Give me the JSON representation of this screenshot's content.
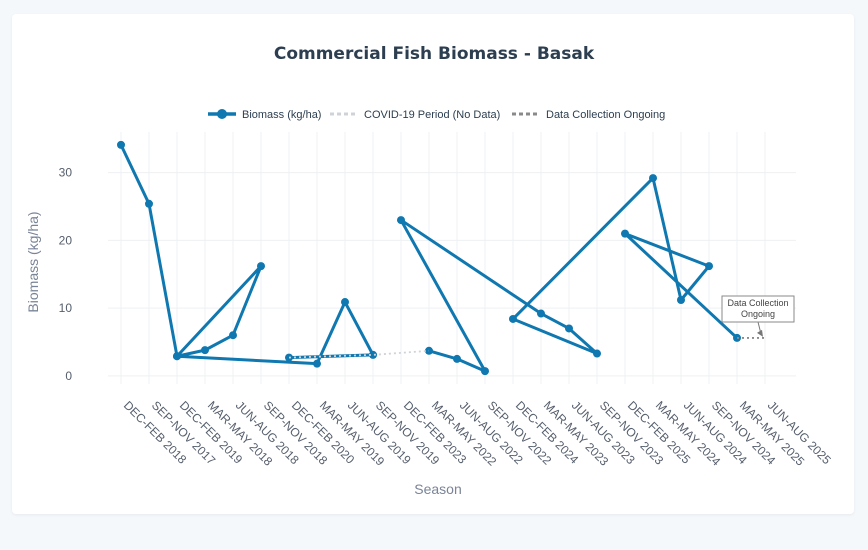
{
  "chart_data": {
    "type": "line",
    "title": "Commercial Fish Biomass - Basak",
    "xlabel": "Season",
    "ylabel": "Biomass (kg/ha)",
    "ylim": [
      -1.2,
      36
    ],
    "yticks": [
      0,
      10,
      20,
      30
    ],
    "grid": true,
    "legend_position": "top-center",
    "categories": [
      "DEC-FEB 2018",
      "SEP-NOV 2017",
      "DEC-FEB 2019",
      "MAR-MAY 2018",
      "JUN-AUG 2018",
      "SEP-NOV 2018",
      "DEC-FEB 2020",
      "MAR-MAY 2019",
      "JUN-AUG 2019",
      "SEP-NOV 2019",
      "DEC-FEB 2023",
      "MAR-MAY 2022",
      "JUN-AUG 2022",
      "SEP-NOV 2022",
      "DEC-FEB 2024",
      "MAR-MAY 2023",
      "JUN-AUG 2023",
      "SEP-NOV 2023",
      "DEC-FEB 2025",
      "MAR-MAY 2024",
      "JUN-AUG 2024",
      "SEP-NOV 2024",
      "MAR-MAY 2025",
      "JUN-AUG 2025"
    ],
    "series": [
      {
        "name": "Biomass (kg/ha)",
        "color": "#0f78b0",
        "style": "solid-markers",
        "points": [
          {
            "x": "DEC-FEB 2018",
            "y": 34.1
          },
          {
            "x": "SEP-NOV 2017",
            "y": 25.4
          },
          {
            "x": "DEC-FEB 2019",
            "y": 2.9
          },
          {
            "x": "MAR-MAY 2018",
            "y": 3.8
          },
          {
            "x": "JUN-AUG 2018",
            "y": 6.0
          },
          {
            "x": "SEP-NOV 2018",
            "y": 16.2
          },
          {
            "x": "DEC-FEB 2019",
            "y": 2.9
          },
          {
            "x": "MAR-MAY 2019",
            "y": 1.8
          },
          {
            "x": "JUN-AUG 2019",
            "y": 10.9
          },
          {
            "x": "SEP-NOV 2019",
            "y": 3.1
          },
          {
            "x": "DEC-FEB 2020",
            "y": 2.7
          },
          null,
          {
            "x": "MAR-MAY 2022",
            "y": 3.7
          },
          {
            "x": "JUN-AUG 2022",
            "y": 2.5
          },
          {
            "x": "SEP-NOV 2022",
            "y": 0.7
          },
          {
            "x": "DEC-FEB 2023",
            "y": 23.0
          },
          {
            "x": "MAR-MAY 2023",
            "y": 9.2
          },
          {
            "x": "JUN-AUG 2023",
            "y": 7.0
          },
          {
            "x": "SEP-NOV 2023",
            "y": 3.3
          },
          {
            "x": "DEC-FEB 2024",
            "y": 8.4
          },
          {
            "x": "MAR-MAY 2024",
            "y": 29.2
          },
          {
            "x": "JUN-AUG 2024",
            "y": 11.2
          },
          {
            "x": "SEP-NOV 2024",
            "y": 16.2
          },
          {
            "x": "DEC-FEB 2025",
            "y": 21.0
          },
          {
            "x": "MAR-MAY 2025",
            "y": 5.6
          }
        ]
      },
      {
        "name": "COVID-19 Period (No Data)",
        "color": "#cfd3d8",
        "style": "dotted",
        "points": [
          {
            "x": "DEC-FEB 2020",
            "y": 2.7
          },
          {
            "x": "SEP-NOV 2019",
            "y": 3.1
          },
          {
            "x": "MAR-MAY 2022",
            "y": 3.7
          }
        ]
      },
      {
        "name": "Data Collection Ongoing",
        "color": "#8a8a8a",
        "style": "dotted",
        "points": [
          {
            "x": "MAR-MAY 2025",
            "y": 5.6
          },
          {
            "x": "JUN-AUG 2025",
            "y": 5.6
          }
        ]
      }
    ],
    "annotations": [
      {
        "text_lines": [
          "Data Collection",
          "Ongoing"
        ],
        "x": "JUN-AUG 2025",
        "y": 5.6
      }
    ]
  }
}
